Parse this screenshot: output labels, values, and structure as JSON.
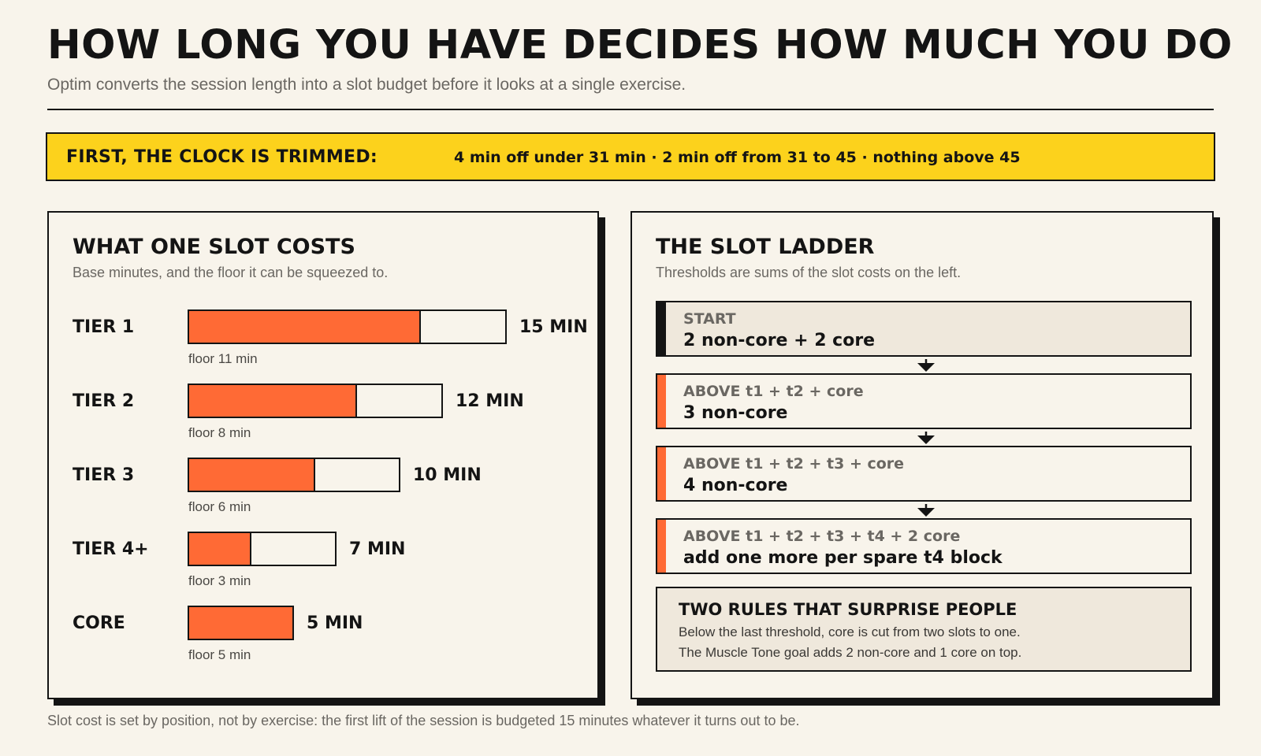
{
  "header": {
    "title": "HOW LONG YOU HAVE DECIDES HOW MUCH YOU DO",
    "subtitle": "Optim converts the session length into a slot budget before it looks at a single exercise."
  },
  "banner": {
    "label": "FIRST, THE CLOCK IS TRIMMED:",
    "value": "4 min off under 31 min · 2 min off from 31 to 45 · nothing above 45"
  },
  "slot_costs": {
    "title": "WHAT ONE SLOT COSTS",
    "subtitle": "Base minutes, and the floor it can be squeezed to.",
    "tiers": [
      {
        "label": "TIER 1",
        "base_min": 15,
        "floor_min": 11,
        "value_label": "15 MIN",
        "floor_label": "floor 11 min"
      },
      {
        "label": "TIER 2",
        "base_min": 12,
        "floor_min": 8,
        "value_label": "12 MIN",
        "floor_label": "floor 8 min"
      },
      {
        "label": "TIER 3",
        "base_min": 10,
        "floor_min": 6,
        "value_label": "10 MIN",
        "floor_label": "floor 6 min"
      },
      {
        "label": "TIER 4+",
        "base_min": 7,
        "floor_min": 3,
        "value_label": "7 MIN",
        "floor_label": "floor 3 min"
      },
      {
        "label": "CORE",
        "base_min": 5,
        "floor_min": 5,
        "value_label": "5 MIN",
        "floor_label": "floor 5 min"
      }
    ]
  },
  "ladder": {
    "title": "THE SLOT LADDER",
    "subtitle": "Thresholds are sums of the slot costs on the left.",
    "steps": [
      {
        "condition": "START",
        "result": "2 non-core + 2 core"
      },
      {
        "condition": "ABOVE t1 + t2 + core",
        "result": "3 non-core"
      },
      {
        "condition": "ABOVE t1 + t2 + t3 + core",
        "result": "4 non-core"
      },
      {
        "condition": "ABOVE t1 + t2 + t3 + t4 + 2 core",
        "result": "add one more per spare t4 block"
      }
    ],
    "note": {
      "title": "TWO RULES THAT SURPRISE PEOPLE",
      "lines": [
        "Below the last threshold, core is cut from two slots to one.",
        "The Muscle Tone goal adds 2 non-core and 1 core on top."
      ]
    }
  },
  "footer": "Slot cost is set by position, not by exercise: the first lift of the session is budgeted 15 minutes whatever it turns out to be.",
  "colors": {
    "background": "#f8f4eb",
    "accent": "#ff6a35",
    "banner": "#fcd21c",
    "ink": "#141414"
  }
}
